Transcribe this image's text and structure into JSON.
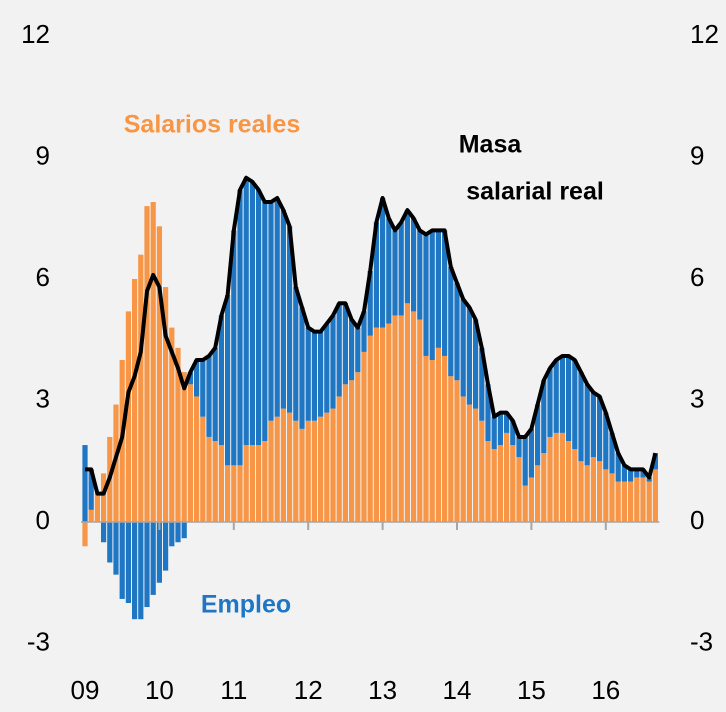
{
  "chart_data": {
    "type": "bar",
    "stacked": true,
    "categories": [
      "09",
      null,
      null,
      null,
      null,
      null,
      null,
      null,
      null,
      null,
      null,
      null,
      "10",
      null,
      null,
      null,
      null,
      null,
      null,
      null,
      null,
      null,
      null,
      null,
      "11",
      null,
      null,
      null,
      null,
      null,
      null,
      null,
      null,
      null,
      null,
      null,
      "12",
      null,
      null,
      null,
      null,
      null,
      null,
      null,
      null,
      null,
      null,
      null,
      "13",
      null,
      null,
      null,
      null,
      null,
      null,
      null,
      null,
      null,
      null,
      null,
      "14",
      null,
      null,
      null,
      null,
      null,
      null,
      null,
      null,
      null,
      null,
      null,
      "15",
      null,
      null,
      null,
      null,
      null,
      null,
      null,
      null,
      null,
      null,
      null,
      "16",
      null,
      null,
      null,
      null,
      null,
      null,
      null,
      null
    ],
    "series": [
      {
        "name": "Salarios reales",
        "color": "#f79646",
        "type": "bar",
        "values": [
          -0.6,
          0.3,
          0.7,
          1.2,
          2.1,
          2.9,
          4.0,
          5.2,
          6.0,
          6.6,
          7.8,
          7.9,
          7.3,
          5.8,
          4.8,
          4.3,
          3.7,
          3.4,
          3.1,
          2.6,
          2.1,
          2.0,
          1.9,
          1.4,
          1.4,
          1.4,
          1.9,
          1.9,
          1.9,
          2.0,
          2.5,
          2.6,
          2.8,
          2.7,
          2.5,
          2.3,
          2.5,
          2.5,
          2.6,
          2.7,
          2.8,
          3.1,
          3.4,
          3.5,
          3.7,
          4.2,
          4.6,
          4.8,
          4.8,
          4.9,
          5.1,
          5.1,
          5.4,
          5.2,
          5.0,
          4.1,
          4.0,
          4.3,
          4.1,
          3.6,
          3.5,
          3.1,
          2.9,
          2.8,
          2.5,
          2.0,
          1.8,
          1.9,
          2.2,
          1.9,
          1.6,
          0.9,
          1.1,
          1.4,
          1.7,
          2.1,
          2.2,
          2.2,
          2.0,
          1.8,
          1.5,
          1.4,
          1.6,
          1.5,
          1.3,
          1.2,
          1.0,
          1.0,
          1.0,
          1.1,
          1.1,
          1.0,
          1.3
        ]
      },
      {
        "name": "Empleo",
        "color": "#1f77c4",
        "type": "bar",
        "values": [
          1.9,
          1.0,
          0,
          -0.5,
          -1.0,
          -1.3,
          -1.9,
          -2.0,
          -2.4,
          -2.4,
          -2.1,
          -1.8,
          -1.5,
          -1.2,
          -0.6,
          -0.5,
          -0.4,
          0.3,
          0.9,
          1.4,
          2.0,
          2.3,
          3.2,
          4.2,
          5.8,
          6.8,
          6.6,
          6.5,
          6.3,
          5.9,
          5.4,
          5.4,
          4.9,
          4.6,
          3.3,
          3.0,
          2.3,
          2.2,
          2.1,
          2.2,
          2.3,
          2.3,
          2.0,
          1.5,
          1.1,
          1.0,
          1.6,
          2.6,
          3.2,
          2.6,
          2.1,
          2.3,
          2.3,
          2.3,
          2.2,
          3.0,
          3.2,
          2.9,
          3.1,
          2.7,
          2.4,
          2.4,
          2.4,
          2.2,
          1.8,
          1.4,
          0.8,
          0.8,
          0.5,
          0.6,
          0.5,
          1.2,
          1.2,
          1.5,
          1.8,
          1.7,
          1.8,
          1.9,
          2.1,
          2.2,
          2.2,
          2.0,
          1.6,
          1.6,
          1.4,
          1.0,
          0.7,
          0.4,
          0.3,
          0.2,
          0.2,
          0.1,
          0.4
        ]
      },
      {
        "color": "#000000",
        "type": "line",
        "values": [
          1.3,
          1.3,
          0.7,
          0.7,
          1.1,
          1.6,
          2.1,
          3.2,
          3.6,
          4.2,
          5.7,
          6.1,
          5.8,
          4.6,
          4.2,
          3.8,
          3.3,
          3.7,
          4.0,
          4.0,
          4.1,
          4.3,
          5.1,
          5.6,
          7.2,
          8.2,
          8.5,
          8.4,
          8.2,
          7.9,
          7.9,
          8.0,
          7.7,
          7.3,
          5.8,
          5.3,
          4.8,
          4.7,
          4.7,
          4.9,
          5.1,
          5.4,
          5.4,
          5.0,
          4.8,
          5.2,
          6.2,
          7.4,
          8.0,
          7.5,
          7.2,
          7.4,
          7.7,
          7.5,
          7.2,
          7.1,
          7.2,
          7.2,
          7.2,
          6.3,
          5.9,
          5.5,
          5.3,
          5.0,
          4.3,
          3.4,
          2.6,
          2.7,
          2.7,
          2.5,
          2.1,
          2.1,
          2.3,
          2.9,
          3.5,
          3.8,
          4.0,
          4.1,
          4.1,
          4.0,
          3.7,
          3.4,
          3.2,
          3.1,
          2.7,
          2.2,
          1.7,
          1.4,
          1.3,
          1.3,
          1.3,
          1.1,
          1.7
        ]
      }
    ],
    "annotations": [
      "Masa",
      "salarial real"
    ],
    "ylim": [
      -3,
      12
    ],
    "yticks": [
      -3,
      0,
      3,
      6,
      9,
      12
    ],
    "y2lim": [
      -3,
      12
    ],
    "y2ticks": [
      -3,
      0,
      3,
      6,
      9,
      12
    ]
  }
}
